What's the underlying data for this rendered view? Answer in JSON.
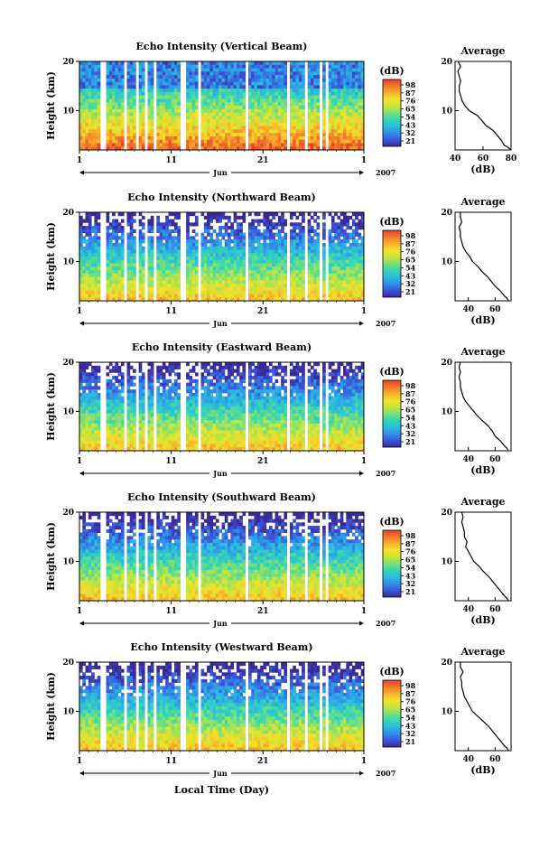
{
  "colormap": [
    "#3a2a99",
    "#3b55d8",
    "#2f8fe8",
    "#2bbbe0",
    "#36d6b0",
    "#79e07a",
    "#c6e53a",
    "#f4e12c",
    "#f7b22b",
    "#f27a2a",
    "#e8402a"
  ],
  "colorbar": {
    "unit": "(dB)",
    "ticks": [
      "98",
      "87",
      "76",
      "65",
      "54",
      "43",
      "32",
      "21"
    ]
  },
  "xaxis": {
    "ticks": [
      "1",
      "11",
      "21",
      "1"
    ],
    "month": "Jun",
    "year": "2007",
    "label": "Local Time (Day)"
  },
  "yaxis": {
    "label": "Height (km)",
    "ticks": [
      "20",
      "10"
    ]
  },
  "avg_panel": {
    "title": "Average",
    "xlabel": "(dB)"
  },
  "chart_data": [
    {
      "type": "heatmap",
      "title": "Echo Intensity (Vertical Beam)",
      "xlabel": "",
      "ylabel": "Height (km)",
      "xlim_days": [
        1,
        32
      ],
      "ylim_km": [
        2,
        20
      ],
      "clim_db": [
        21,
        98
      ],
      "data_gaps_days": [
        [
          3.4,
          3.9
        ],
        [
          6.0,
          6.3
        ],
        [
          7.0,
          7.3
        ],
        [
          8.0,
          8.3
        ],
        [
          9.0,
          9.3
        ],
        [
          12.0,
          12.7
        ],
        [
          14.0,
          14.2
        ],
        [
          19.2,
          19.5
        ],
        [
          23.5,
          23.9
        ],
        [
          25.5,
          25.9
        ],
        [
          27.3,
          27.5
        ],
        [
          27.8,
          28.1
        ]
      ],
      "average_profile": {
        "title": "Average",
        "xlabel": "(dB)",
        "xticks": [
          "40",
          "60",
          "80"
        ],
        "xlim": [
          40,
          80
        ],
        "yticks": [
          "20",
          "10"
        ],
        "height_km": [
          2.0,
          2.5,
          3.0,
          4.0,
          5.0,
          6.0,
          7.0,
          8.0,
          9.0,
          10.0,
          11.0,
          12.0,
          13.0,
          14.0,
          15.0,
          16.0,
          17.0,
          18.0,
          19.0,
          20.0
        ],
        "db": [
          80,
          78,
          75,
          73,
          70,
          67,
          62,
          59,
          56,
          50,
          47,
          45,
          44,
          43,
          43,
          44,
          43,
          42,
          44,
          42
        ]
      }
    },
    {
      "type": "heatmap",
      "title": "Echo Intensity (Northward Beam)",
      "xlabel": "",
      "ylabel": "Height (km)",
      "xlim_days": [
        1,
        32
      ],
      "ylim_km": [
        2,
        20
      ],
      "clim_db": [
        21,
        98
      ],
      "data_gaps_days": [
        [
          3.4,
          3.9
        ],
        [
          6.0,
          6.3
        ],
        [
          7.0,
          7.3
        ],
        [
          8.0,
          8.3
        ],
        [
          9.0,
          9.3
        ],
        [
          12.0,
          12.7
        ],
        [
          14.0,
          14.2
        ],
        [
          19.2,
          19.5
        ],
        [
          23.5,
          23.9
        ],
        [
          25.5,
          25.9
        ],
        [
          27.3,
          27.5
        ],
        [
          27.8,
          28.1
        ]
      ],
      "average_profile": {
        "title": "Average",
        "xlabel": "(dB)",
        "xticks": [
          "40",
          "60"
        ],
        "xlim": [
          30,
          72
        ],
        "yticks": [
          "20",
          "10"
        ],
        "height_km": [
          2.0,
          2.5,
          3.0,
          4.0,
          5.0,
          6.0,
          7.0,
          8.0,
          9.0,
          10.0,
          11.0,
          12.0,
          13.0,
          14.0,
          15.0,
          16.0,
          17.0,
          18.0,
          19.0,
          20.0
        ],
        "db": [
          70,
          69,
          67,
          64,
          60,
          57,
          54,
          50,
          47,
          43,
          41,
          38,
          36,
          35,
          34,
          34,
          33,
          35,
          34,
          34
        ]
      }
    },
    {
      "type": "heatmap",
      "title": "Echo Intensity (Eastward Beam)",
      "xlabel": "",
      "ylabel": "Height (km)",
      "xlim_days": [
        1,
        32
      ],
      "ylim_km": [
        2,
        20
      ],
      "clim_db": [
        21,
        98
      ],
      "data_gaps_days": [
        [
          3.4,
          3.9
        ],
        [
          6.0,
          6.3
        ],
        [
          7.0,
          7.3
        ],
        [
          8.0,
          8.3
        ],
        [
          9.0,
          9.3
        ],
        [
          12.0,
          12.7
        ],
        [
          14.0,
          14.2
        ],
        [
          19.2,
          19.5
        ],
        [
          23.5,
          23.9
        ],
        [
          25.5,
          25.9
        ],
        [
          27.3,
          27.5
        ],
        [
          27.8,
          28.1
        ]
      ],
      "average_profile": {
        "title": "Average",
        "xlabel": "(dB)",
        "xticks": [
          "40",
          "60"
        ],
        "xlim": [
          30,
          72
        ],
        "yticks": [
          "20",
          "10"
        ],
        "height_km": [
          2.0,
          2.5,
          3.0,
          4.0,
          5.0,
          6.0,
          7.0,
          8.0,
          9.0,
          10.0,
          11.0,
          12.0,
          13.0,
          14.0,
          15.0,
          16.0,
          17.0,
          18.0,
          19.0,
          20.0
        ],
        "db": [
          70,
          69,
          67,
          64,
          60,
          58,
          55,
          51,
          47,
          44,
          41,
          38,
          36,
          35,
          34,
          34,
          33,
          34,
          33,
          34
        ]
      }
    },
    {
      "type": "heatmap",
      "title": "Echo Intensity (Southward Beam)",
      "xlabel": "",
      "ylabel": "Height (km)",
      "xlim_days": [
        1,
        32
      ],
      "ylim_km": [
        2,
        20
      ],
      "clim_db": [
        21,
        98
      ],
      "data_gaps_days": [
        [
          3.4,
          3.9
        ],
        [
          6.0,
          6.3
        ],
        [
          7.0,
          7.3
        ],
        [
          8.0,
          8.3
        ],
        [
          9.0,
          9.3
        ],
        [
          12.0,
          12.7
        ],
        [
          14.0,
          14.2
        ],
        [
          19.2,
          19.5
        ],
        [
          23.5,
          23.9
        ],
        [
          25.5,
          25.9
        ],
        [
          27.3,
          27.5
        ],
        [
          27.8,
          28.1
        ]
      ],
      "average_profile": {
        "title": "Average",
        "xlabel": "(dB)",
        "xticks": [
          "40",
          "60"
        ],
        "xlim": [
          30,
          72
        ],
        "yticks": [
          "20",
          "10"
        ],
        "height_km": [
          2.0,
          2.5,
          3.0,
          4.0,
          5.0,
          6.0,
          7.0,
          8.0,
          9.0,
          10.0,
          11.0,
          12.0,
          13.0,
          14.0,
          15.0,
          16.0,
          17.0,
          18.0,
          19.0,
          20.0
        ],
        "db": [
          70,
          69,
          67,
          64,
          61,
          58,
          55,
          51,
          48,
          44,
          42,
          40,
          38,
          39,
          37,
          37,
          36,
          35,
          36,
          35
        ]
      }
    },
    {
      "type": "heatmap",
      "title": "Echo Intensity (Westward Beam)",
      "xlabel": "Local Time (Day)",
      "ylabel": "Height (km)",
      "xlim_days": [
        1,
        32
      ],
      "ylim_km": [
        2,
        20
      ],
      "clim_db": [
        21,
        98
      ],
      "data_gaps_days": [
        [
          3.4,
          3.9
        ],
        [
          6.0,
          6.3
        ],
        [
          7.0,
          7.3
        ],
        [
          8.0,
          8.3
        ],
        [
          9.0,
          9.3
        ],
        [
          12.0,
          12.7
        ],
        [
          14.0,
          14.2
        ],
        [
          19.2,
          19.5
        ],
        [
          23.5,
          23.9
        ],
        [
          25.5,
          25.9
        ],
        [
          27.3,
          27.5
        ],
        [
          27.8,
          28.1
        ]
      ],
      "average_profile": {
        "title": "Average",
        "xlabel": "(dB)",
        "xticks": [
          "40",
          "60"
        ],
        "xlim": [
          30,
          72
        ],
        "yticks": [
          "20",
          "10"
        ],
        "height_km": [
          2.0,
          2.5,
          3.0,
          4.0,
          5.0,
          6.0,
          7.0,
          8.0,
          9.0,
          10.0,
          11.0,
          12.0,
          13.0,
          14.0,
          15.0,
          16.0,
          17.0,
          18.0,
          19.0,
          20.0
        ],
        "db": [
          70,
          69,
          67,
          64,
          61,
          58,
          55,
          51,
          47,
          43,
          41,
          39,
          37,
          36,
          35,
          35,
          34,
          36,
          34,
          34
        ]
      }
    }
  ]
}
